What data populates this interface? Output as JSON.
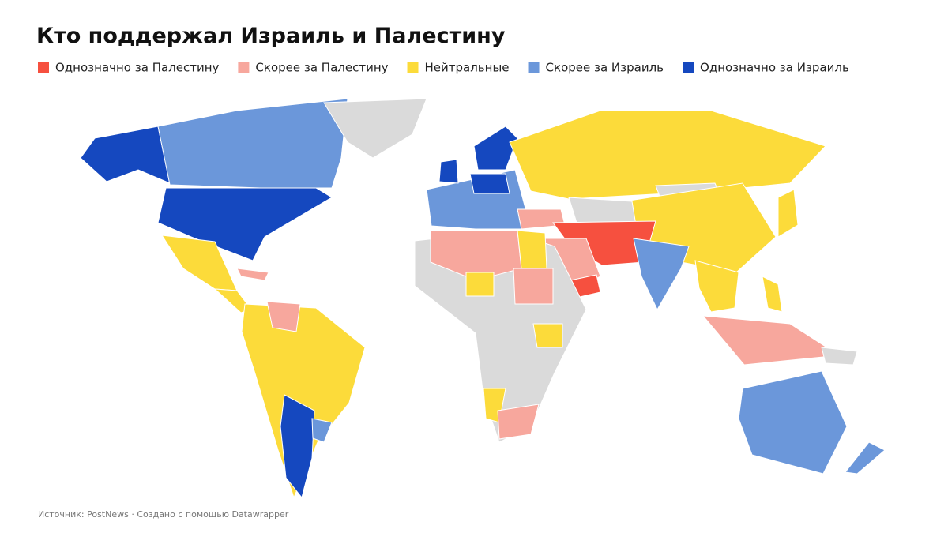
{
  "header": {
    "title": "Кто поддержал Израиль и Палестину"
  },
  "legend": [
    {
      "label": "Однозначно за Палестину",
      "color": "#f6503f"
    },
    {
      "label": "Скорее за Палестину",
      "color": "#f7a79d"
    },
    {
      "label": "Нейтральные",
      "color": "#fcdb3a"
    },
    {
      "label": "Скорее за Израиль",
      "color": "#6b97da"
    },
    {
      "label": "Однозначно за Израиль",
      "color": "#1548bf"
    }
  ],
  "no_data_color": "#dadada",
  "footer": {
    "source": "Источник: PostNews · Создано с помощью Datawrapper"
  }
}
